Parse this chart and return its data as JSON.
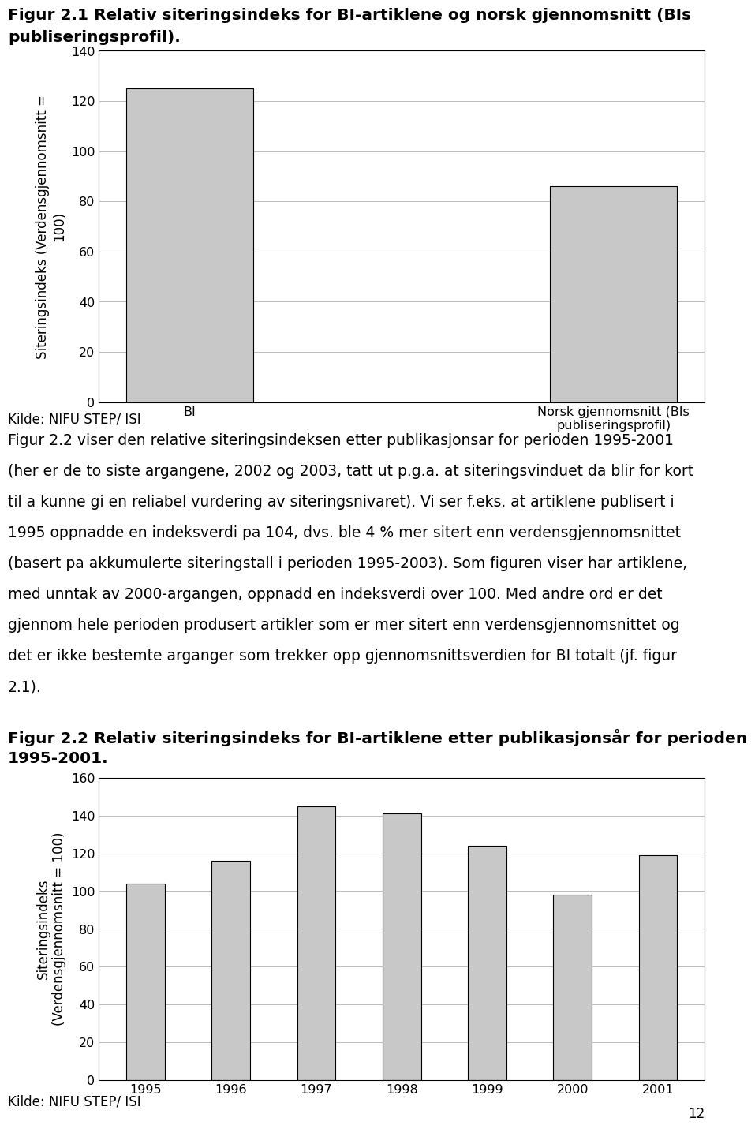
{
  "fig1_title_line1": "Figur 2.1 Relativ siteringsindeks for BI-artiklene og norsk gjennomsnitt (BIs",
  "fig1_title_line2": "publiseringsprofil).",
  "fig1_categories": [
    "BI",
    "Norsk gjennomsnitt (BIs\npubliseringsprofil)"
  ],
  "fig1_values": [
    125,
    86
  ],
  "fig1_ylabel_line1": "Siteringsindeks (Verdensgjennomsnitt =",
  "fig1_ylabel_line2": "100)",
  "fig1_yticks": [
    0,
    20,
    40,
    60,
    80,
    100,
    120,
    140
  ],
  "fig1_ylim": [
    0,
    140
  ],
  "fig1_source": "Kilde: NIFU STEP/ ISI",
  "body_text_lines": [
    "Figur 2.2 viser den relative siteringsindeksen etter publikasjonsar for perioden 1995-2001",
    "(her er de to siste argangene, 2002 og 2003, tatt ut p.g.a. at siteringsvinduet da blir for kort",
    "til a kunne gi en reliabel vurdering av siteringsnivaret). Vi ser f.eks. at artiklene publisert i",
    "1995 oppnadde en indeksverdi pa 104, dvs. ble 4 % mer sitert enn verdensgjennomsnittet",
    "(basert pa akkumulerte siteringstall i perioden 1995-2003). Som figuren viser har artiklene,",
    "med unntak av 2000-argangen, oppnadd en indeksverdi over 100. Med andre ord er det",
    "gjennom hele perioden produsert artikler som er mer sitert enn verdensgjennomsnittet og",
    "det er ikke bestemte arganger som trekker opp gjennomsnittsverdien for BI totalt (jf. figur",
    "2.1)."
  ],
  "fig2_title_line1": "Figur 2.2 Relativ siteringsindeks for BI-artiklene etter publikasjonsår for perioden",
  "fig2_title_line2": "1995-2001.",
  "fig2_categories": [
    "1995",
    "1996",
    "1997",
    "1998",
    "1999",
    "2000",
    "2001"
  ],
  "fig2_values": [
    104,
    116,
    145,
    141,
    124,
    98,
    119
  ],
  "fig2_ylabel_line1": "Siteringsindeks",
  "fig2_ylabel_line2": "(Verdensgjennomsnitt = 100)",
  "fig2_yticks": [
    0,
    20,
    40,
    60,
    80,
    100,
    120,
    140,
    160
  ],
  "fig2_ylim": [
    0,
    160
  ],
  "fig2_source": "Kilde: NIFU STEP/ ISI",
  "page_number": "12",
  "bar_color": "#c8c8c8",
  "bar_edgecolor": "#000000",
  "background_color": "#ffffff",
  "grid_color": "#bbbbbb",
  "font_size_body": 13.5,
  "font_size_title": 14.5,
  "font_size_axis_label": 12,
  "font_size_tick": 11.5,
  "font_size_source": 12
}
